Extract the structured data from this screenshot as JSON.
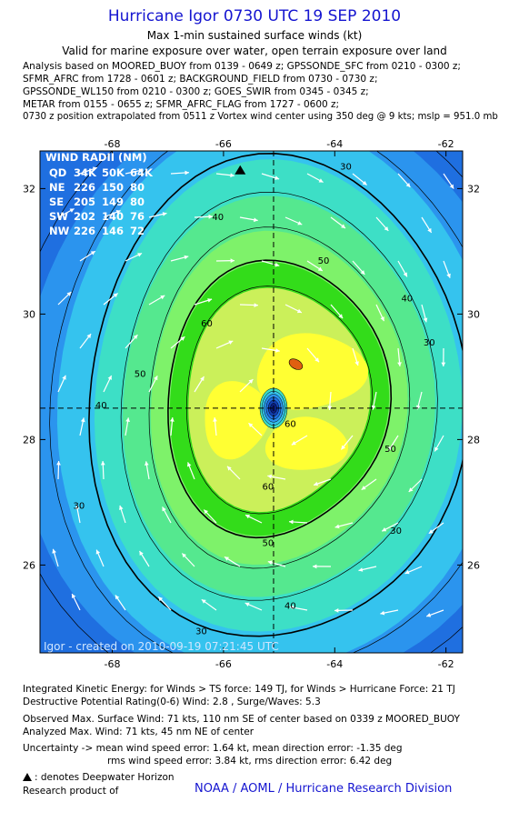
{
  "header": {
    "title": "Hurricane Igor 0730 UTC 19 SEP 2010",
    "subtitle": "Max 1-min sustained surface winds (kt)",
    "validity": "Valid for marine exposure over water, open terrain exposure over land",
    "analysis_lines": [
      "Analysis based on MOORED_BUOY from 0139 - 0649 z; GPSSONDE_SFC from 0210 - 0300 z;",
      "SFMR_AFRC from 1728 - 0601 z; BACKGROUND_FIELD from 0730 - 0730 z;",
      "GPSSONDE_WL150 from 0210 - 0300 z; GOES_SWIR from 0345 - 0345 z;",
      "METAR from 0155 - 0655 z; SFMR_AFRC_FLAG from 1727 - 0600 z;",
      "0730 z position extrapolated from 0511 z Vortex wind center using 350 deg @ 9 kts; mslp = 951.0 mb"
    ]
  },
  "chart_data": {
    "type": "contour",
    "xlim": [
      -69.3,
      -61.7
    ],
    "ylim": [
      24.6,
      32.6
    ],
    "x_ticks": [
      -68,
      -66,
      -64,
      -62
    ],
    "y_ticks": [
      26,
      28,
      30,
      32
    ],
    "x_tick_labels": [
      "-68",
      "-66",
      "-64",
      "-62"
    ],
    "y_tick_labels": [
      "26",
      "28",
      "30",
      "32"
    ],
    "center": {
      "lon": -65.1,
      "lat": 28.5
    },
    "contour_levels": [
      30,
      40,
      50,
      60,
      70
    ],
    "contour_labels": [
      {
        "text": "30",
        "lon": -63.8,
        "lat": 32.3
      },
      {
        "text": "30",
        "lon": -62.3,
        "lat": 29.5
      },
      {
        "text": "30",
        "lon": -62.9,
        "lat": 26.5
      },
      {
        "text": "30",
        "lon": -66.4,
        "lat": 24.9
      },
      {
        "text": "30",
        "lon": -68.6,
        "lat": 26.9
      },
      {
        "text": "40",
        "lon": -66.1,
        "lat": 31.5
      },
      {
        "text": "40",
        "lon": -62.7,
        "lat": 30.2
      },
      {
        "text": "40",
        "lon": -64.8,
        "lat": 25.3
      },
      {
        "text": "40",
        "lon": -68.2,
        "lat": 28.5
      },
      {
        "text": "50",
        "lon": -64.2,
        "lat": 30.8
      },
      {
        "text": "50",
        "lon": -63.0,
        "lat": 27.8
      },
      {
        "text": "50",
        "lon": -65.2,
        "lat": 26.3
      },
      {
        "text": "50",
        "lon": -67.5,
        "lat": 29.0
      },
      {
        "text": "60",
        "lon": -66.3,
        "lat": 29.8
      },
      {
        "text": "60",
        "lon": -64.8,
        "lat": 28.2
      },
      {
        "text": "60",
        "lon": -65.2,
        "lat": 27.2
      }
    ],
    "max_wind_marker": {
      "lon": -64.7,
      "lat": 29.2
    },
    "deepwater_horizon": {
      "lon": -65.7,
      "lat": 32.3
    },
    "fill_colors": [
      "#1f6fe0",
      "#2b94ee",
      "#35c3ee",
      "#3ddfc6",
      "#55e88f",
      "#7ef26a",
      "#33dc1a",
      "#cbf05a",
      "#ffff33"
    ],
    "wind_radii": {
      "title": "WIND RADII (NM)",
      "header": [
        "QD",
        "34K",
        "50K",
        "64K"
      ],
      "rows": [
        [
          "NE",
          "226",
          "150",
          "80"
        ],
        [
          "SE",
          "205",
          "149",
          "80"
        ],
        [
          "SW",
          "202",
          "140",
          "76"
        ],
        [
          "NW",
          "226",
          "146",
          "72"
        ]
      ]
    },
    "watermark": "Igor - created on 2010-09-19 07:21:45 UTC"
  },
  "footer": {
    "ike": "Integrated Kinetic Energy:  for Winds > TS force: 149 TJ,  for Winds > Hurricane Force: 21 TJ",
    "dpr": "Destructive Potential Rating(0-6)  Wind: 2.8 , Surge/Waves: 5.3",
    "observed": "Observed Max. Surface Wind: 71 kts, 110 nm SE of center based on 0339 z MOORED_BUOY",
    "analyzed": "Analyzed Max. Wind: 71 kts, 45 nm NE of center",
    "uncertainty1": "Uncertainty -> mean wind speed error: 1.64 kt,   mean direction error:  -1.35 deg",
    "uncertainty2": "rms wind speed error: 3.84 kt,   rms direction error: 6.42 deg",
    "deepwater_note": ": denotes Deepwater Horizon",
    "research": "Research product of",
    "credit": "NOAA / AOML / Hurricane Research Division"
  }
}
